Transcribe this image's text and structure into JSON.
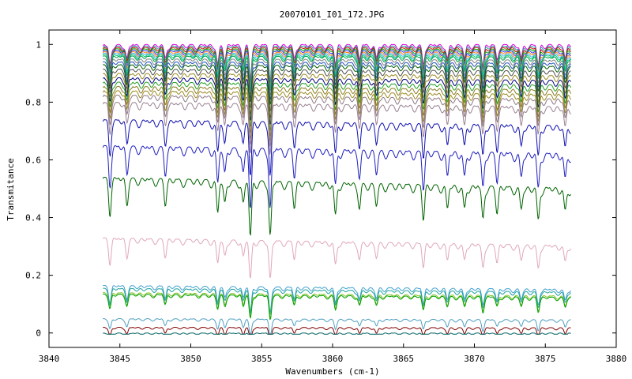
{
  "chart_data": {
    "type": "line",
    "title": "20070101_I01_172.JPG",
    "xlabel": "Wavenumbers (cm-1)",
    "ylabel": "Transmitance",
    "xlim": [
      3840,
      3880
    ],
    "ylim": [
      -0.05,
      1.05
    ],
    "x_ticks": [
      "3840",
      "3845",
      "3850",
      "3855",
      "3860",
      "3865",
      "3870",
      "3875",
      "3880"
    ],
    "y_ticks": [
      "0",
      "0.2",
      "0.4",
      "0.6",
      "0.8",
      "1"
    ],
    "grid": false,
    "legend": "none",
    "x_range_data": [
      3843.8,
      3876.8
    ],
    "absorption_lines_cm1": [
      3844.3,
      3845.5,
      3848.2,
      3851.9,
      3852.4,
      3853.7,
      3854.2,
      3855.6,
      3857.3,
      3860.2,
      3861.9,
      3863.1,
      3866.4,
      3868.1,
      3869.3,
      3870.6,
      3871.6,
      3873.3,
      3874.5,
      3876.4
    ],
    "series": [
      {
        "baseline": 1.0,
        "color": "#e000e0"
      },
      {
        "baseline": 0.995,
        "color": "#20a0a0"
      },
      {
        "baseline": 0.99,
        "color": "#cc0000"
      },
      {
        "baseline": 0.985,
        "color": "#00aa00"
      },
      {
        "baseline": 0.98,
        "color": "#3030ff"
      },
      {
        "baseline": 0.975,
        "color": "#ff8000"
      },
      {
        "baseline": 0.97,
        "color": "#40b0ff"
      },
      {
        "baseline": 0.965,
        "color": "#00cc66"
      },
      {
        "baseline": 0.96,
        "color": "#00a050"
      },
      {
        "baseline": 0.95,
        "color": "#808080"
      },
      {
        "baseline": 0.94,
        "color": "#2050c0"
      },
      {
        "baseline": 0.93,
        "color": "#006000"
      },
      {
        "baseline": 0.915,
        "color": "#505050"
      },
      {
        "baseline": 0.9,
        "color": "#9a8a20"
      },
      {
        "baseline": 0.885,
        "color": "#000080"
      },
      {
        "baseline": 0.87,
        "color": "#20a020"
      },
      {
        "baseline": 0.855,
        "color": "#8a7a20"
      },
      {
        "baseline": 0.84,
        "color": "#9a8a20"
      },
      {
        "baseline": 0.825,
        "color": "#8f7a86"
      },
      {
        "baseline": 0.8,
        "color": "#9a8090"
      },
      {
        "baseline": 0.74,
        "color": "#1010b0"
      },
      {
        "baseline": 0.65,
        "color": "#2020c0"
      },
      {
        "baseline": 0.54,
        "color": "#006400"
      },
      {
        "baseline": 0.33,
        "color": "#e0a8b8"
      },
      {
        "baseline": 0.165,
        "color": "#40a0d0"
      },
      {
        "baseline": 0.155,
        "color": "#20a0a0"
      },
      {
        "baseline": 0.14,
        "color": "#80c020"
      },
      {
        "baseline": 0.135,
        "color": "#00a000"
      },
      {
        "baseline": 0.05,
        "color": "#50a0c0"
      },
      {
        "baseline": 0.02,
        "color": "#800000"
      },
      {
        "baseline": 0.0,
        "color": "#006060"
      }
    ]
  }
}
